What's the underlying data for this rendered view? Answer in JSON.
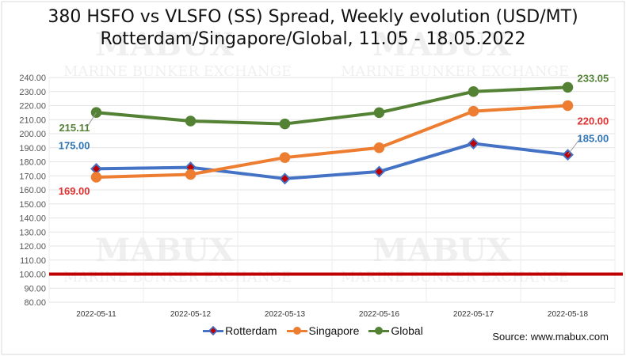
{
  "chart_data": {
    "type": "line",
    "title": "380 HSFO vs VLSFO (SS) Spread, Weekly evolution (USD/MT)",
    "subtitle": "Rotterdam/Singapore/Global, 11.05 - 18.05.2022",
    "categories": [
      "2022-05-11",
      "2022-05-12",
      "2022-05-13",
      "2022-05-16",
      "2022-05-17",
      "2022-05-18"
    ],
    "ylim": [
      80,
      240
    ],
    "ytick_step": 10,
    "yticks": [
      "80.00",
      "90.00",
      "100.00",
      "110.00",
      "120.00",
      "130.00",
      "140.00",
      "150.00",
      "160.00",
      "170.00",
      "180.00",
      "190.00",
      "200.00",
      "210.00",
      "220.00",
      "230.00",
      "240.00"
    ],
    "grid": true,
    "legend_position": "bottom",
    "reference_line": {
      "value": 100,
      "color": "#c00000"
    },
    "series": [
      {
        "name": "Rotterdam",
        "color": "#4472c4",
        "marker": "diamond",
        "marker_fill": "#c00000",
        "values": [
          175,
          176,
          168,
          173,
          193,
          185
        ],
        "labels": [
          {
            "index": 0,
            "text": "175.00"
          },
          {
            "index": 5,
            "text": "185.00"
          }
        ]
      },
      {
        "name": "Singapore",
        "color": "#ed7d31",
        "marker": "circle",
        "marker_fill": "#ed7d31",
        "values": [
          169,
          171,
          183,
          190,
          216,
          220
        ],
        "labels": [
          {
            "index": 0,
            "text": "169.00"
          },
          {
            "index": 5,
            "text": "220.00"
          }
        ]
      },
      {
        "name": "Global",
        "color": "#548235",
        "marker": "circle",
        "marker_fill": "#548235",
        "values": [
          215.11,
          209,
          207,
          215,
          230,
          233.05
        ],
        "labels": [
          {
            "index": 0,
            "text": "215.11"
          },
          {
            "index": 5,
            "text": "233.05"
          }
        ]
      }
    ],
    "label_colors": {
      "Rotterdam": "#2e74b5",
      "Singapore": "#e03030",
      "Global": "#548235"
    }
  },
  "watermark": {
    "brand": "MABUX",
    "tagline": "MARINE BUNKER EXCHANGE"
  },
  "source": "Source: www.mabux.com"
}
